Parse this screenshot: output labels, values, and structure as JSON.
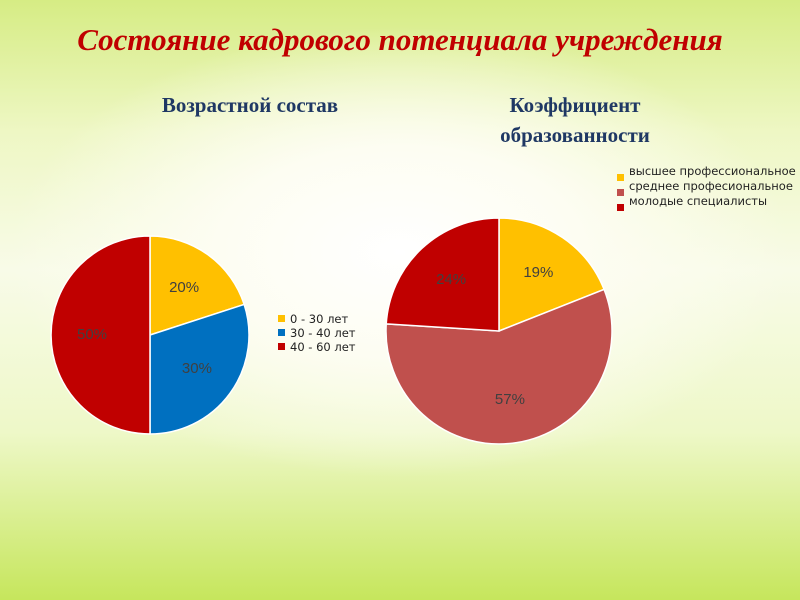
{
  "slide": {
    "title": "Состояние кадрового потенциала учреждения"
  },
  "chart_data": [
    {
      "type": "pie",
      "title": "Возрастной состав",
      "categories": [
        "0 - 30 лет",
        "30 - 40 лет",
        "40 - 60 лет"
      ],
      "values": [
        20,
        30,
        50
      ],
      "labels": [
        "20%",
        "30%",
        "50%"
      ],
      "colors": [
        "#ffc000",
        "#0070c0",
        "#c00000"
      ],
      "legend": "right"
    },
    {
      "type": "pie",
      "title": "Коэффициент образованности",
      "categories": [
        "высшее профессиональное",
        "среднее професиональное",
        "молодые специалисты"
      ],
      "values": [
        19,
        57,
        24
      ],
      "labels": [
        "19%",
        "57%",
        "24%"
      ],
      "colors": [
        "#ffc000",
        "#c0504d",
        "#c00000"
      ],
      "legend": "top-right"
    }
  ]
}
